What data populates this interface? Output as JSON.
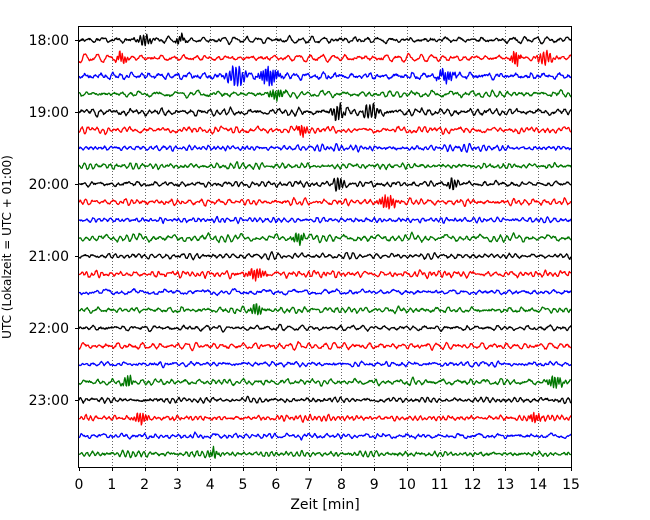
{
  "chart_data": {
    "type": "line",
    "title": "",
    "xlabel": "Zeit  [min]",
    "ylabel": "UTC (Lokalzeit = UTC + 01:00)",
    "xlim": [
      0,
      15
    ],
    "x_ticks": [
      "0",
      "1",
      "2",
      "3",
      "4",
      "5",
      "6",
      "7",
      "8",
      "9",
      "10",
      "11",
      "12",
      "13",
      "14",
      "15"
    ],
    "y_tick_labels": [
      "18:00",
      "19:00",
      "20:00",
      "21:00",
      "22:00",
      "23:00"
    ],
    "grid": "vertical dotted lines at each minute",
    "legend": "none",
    "trace_interval_minutes": 15,
    "trace_count": 24,
    "trace_colors": [
      "#000000",
      "#ff0000",
      "#0000ff",
      "#007700"
    ],
    "series": [
      {
        "start": "18:00",
        "color": "#000000",
        "amplitude": 0.14,
        "bursts": [
          {
            "t": 2.0,
            "a": 0.35
          },
          {
            "t": 3.1,
            "a": 0.2
          }
        ]
      },
      {
        "start": "18:15",
        "color": "#ff0000",
        "amplitude": 0.14,
        "bursts": [
          {
            "t": 1.3,
            "a": 0.3
          },
          {
            "t": 13.3,
            "a": 0.45
          },
          {
            "t": 14.2,
            "a": 0.35
          }
        ]
      },
      {
        "start": "18:30",
        "color": "#0000ff",
        "amplitude": 0.18,
        "bursts": [
          {
            "t": 4.8,
            "a": 0.6
          },
          {
            "t": 5.8,
            "a": 0.5
          },
          {
            "t": 11.2,
            "a": 0.3
          }
        ]
      },
      {
        "start": "18:45",
        "color": "#007700",
        "amplitude": 0.14,
        "bursts": [
          {
            "t": 6.0,
            "a": 0.3
          }
        ]
      },
      {
        "start": "19:00",
        "color": "#000000",
        "amplitude": 0.16,
        "bursts": [
          {
            "t": 7.9,
            "a": 0.45
          },
          {
            "t": 8.9,
            "a": 0.45
          }
        ]
      },
      {
        "start": "19:15",
        "color": "#ff0000",
        "amplitude": 0.14,
        "bursts": [
          {
            "t": 6.8,
            "a": 0.3
          }
        ]
      },
      {
        "start": "19:30",
        "color": "#0000ff",
        "amplitude": 0.13,
        "bursts": []
      },
      {
        "start": "19:45",
        "color": "#007700",
        "amplitude": 0.14,
        "bursts": []
      },
      {
        "start": "20:00",
        "color": "#000000",
        "amplitude": 0.13,
        "bursts": [
          {
            "t": 7.9,
            "a": 0.4
          },
          {
            "t": 11.4,
            "a": 0.35
          }
        ]
      },
      {
        "start": "20:15",
        "color": "#ff0000",
        "amplitude": 0.14,
        "bursts": [
          {
            "t": 9.4,
            "a": 0.35
          }
        ]
      },
      {
        "start": "20:30",
        "color": "#0000ff",
        "amplitude": 0.13,
        "bursts": []
      },
      {
        "start": "20:45",
        "color": "#007700",
        "amplitude": 0.14,
        "bursts": [
          {
            "t": 6.7,
            "a": 0.3
          }
        ]
      },
      {
        "start": "21:00",
        "color": "#000000",
        "amplitude": 0.12,
        "bursts": []
      },
      {
        "start": "21:15",
        "color": "#ff0000",
        "amplitude": 0.14,
        "bursts": [
          {
            "t": 5.4,
            "a": 0.3
          }
        ]
      },
      {
        "start": "21:30",
        "color": "#0000ff",
        "amplitude": 0.13,
        "bursts": []
      },
      {
        "start": "21:45",
        "color": "#007700",
        "amplitude": 0.14,
        "bursts": [
          {
            "t": 5.4,
            "a": 0.35
          }
        ]
      },
      {
        "start": "22:00",
        "color": "#000000",
        "amplitude": 0.12,
        "bursts": []
      },
      {
        "start": "22:15",
        "color": "#ff0000",
        "amplitude": 0.14,
        "bursts": []
      },
      {
        "start": "22:30",
        "color": "#0000ff",
        "amplitude": 0.13,
        "bursts": []
      },
      {
        "start": "22:45",
        "color": "#007700",
        "amplitude": 0.14,
        "bursts": [
          {
            "t": 1.5,
            "a": 0.35
          },
          {
            "t": 14.5,
            "a": 0.3
          }
        ]
      },
      {
        "start": "23:00",
        "color": "#000000",
        "amplitude": 0.13,
        "bursts": []
      },
      {
        "start": "23:15",
        "color": "#ff0000",
        "amplitude": 0.14,
        "bursts": [
          {
            "t": 1.9,
            "a": 0.3
          },
          {
            "t": 13.9,
            "a": 0.25
          }
        ]
      },
      {
        "start": "23:30",
        "color": "#0000ff",
        "amplitude": 0.13,
        "bursts": []
      },
      {
        "start": "23:45",
        "color": "#007700",
        "amplitude": 0.14,
        "bursts": [
          {
            "t": 4.1,
            "a": 0.3
          }
        ]
      }
    ]
  }
}
